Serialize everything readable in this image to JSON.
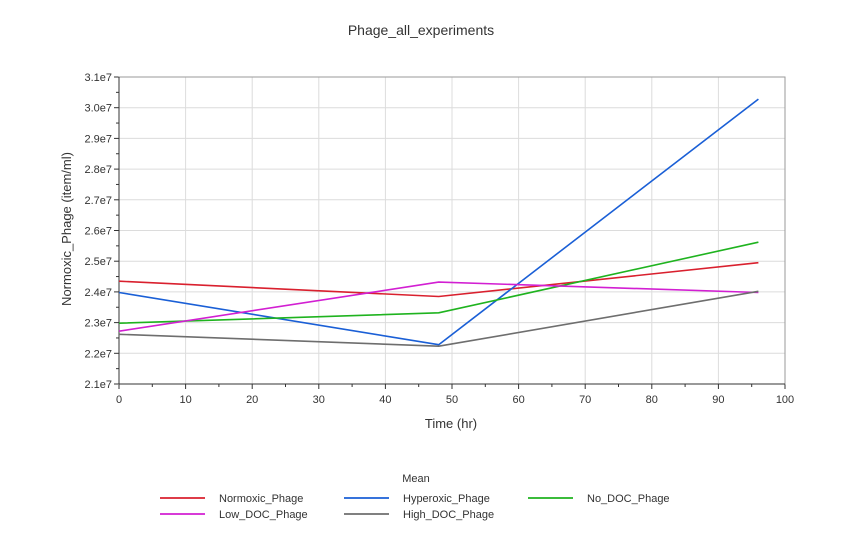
{
  "chart_data": {
    "type": "line",
    "title": "Phage_all_experiments",
    "xlabel": "Time (hr)",
    "ylabel": "Normoxic_Phage (item/ml)",
    "xlim": [
      0,
      100
    ],
    "ylim": [
      21000000,
      31000000
    ],
    "x_ticks": [
      0,
      10,
      20,
      30,
      40,
      50,
      60,
      70,
      80,
      90,
      100
    ],
    "x_tick_labels": [
      "0",
      "10",
      "20",
      "30",
      "40",
      "50",
      "60",
      "70",
      "80",
      "90",
      "100"
    ],
    "y_ticks": [
      21000000,
      22000000,
      23000000,
      24000000,
      25000000,
      26000000,
      27000000,
      28000000,
      29000000,
      30000000,
      31000000
    ],
    "y_tick_labels": [
      "2.1e7",
      "2.2e7",
      "2.3e7",
      "2.4e7",
      "2.5e7",
      "2.6e7",
      "2.7e7",
      "2.8e7",
      "2.9e7",
      "3.0e7",
      "3.1e7"
    ],
    "grid": true,
    "legend_title": "Mean",
    "legend_position": "bottom",
    "series": [
      {
        "name": "Normoxic_Phage",
        "color": "#d9202e",
        "x": [
          0,
          48,
          96
        ],
        "y": [
          24350000,
          23850000,
          24950000
        ]
      },
      {
        "name": "Hyperoxic_Phage",
        "color": "#1a5fd6",
        "x": [
          0,
          48,
          96
        ],
        "y": [
          23980000,
          22280000,
          30280000
        ]
      },
      {
        "name": "No_DOC_Phage",
        "color": "#1fb31f",
        "x": [
          0,
          48,
          96
        ],
        "y": [
          22980000,
          23320000,
          25620000
        ]
      },
      {
        "name": "Low_DOC_Phage",
        "color": "#d21fd2",
        "x": [
          0,
          48,
          96
        ],
        "y": [
          22720000,
          24320000,
          23980000
        ]
      },
      {
        "name": "High_DOC_Phage",
        "color": "#6e6e6e",
        "x": [
          0,
          48,
          96
        ],
        "y": [
          22620000,
          22230000,
          24020000
        ]
      }
    ]
  }
}
